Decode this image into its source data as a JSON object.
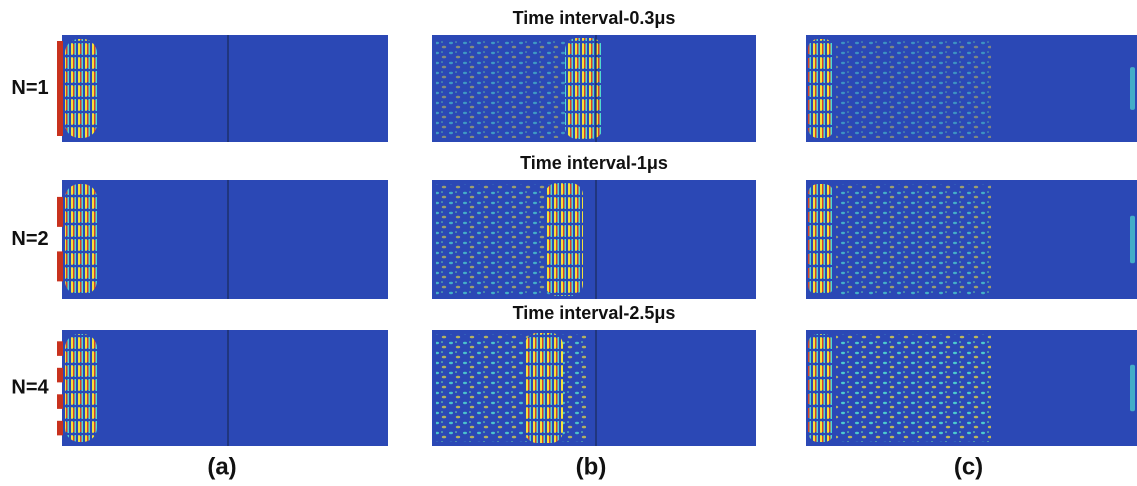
{
  "row_labels": [
    "N=1",
    "N=2",
    "N=4"
  ],
  "time_labels": [
    "Time interval-0.3μs",
    "Time interval-1μs",
    "Time interval-2.5μs"
  ],
  "column_labels": [
    "(a)",
    "(b)",
    "(c)"
  ]
}
